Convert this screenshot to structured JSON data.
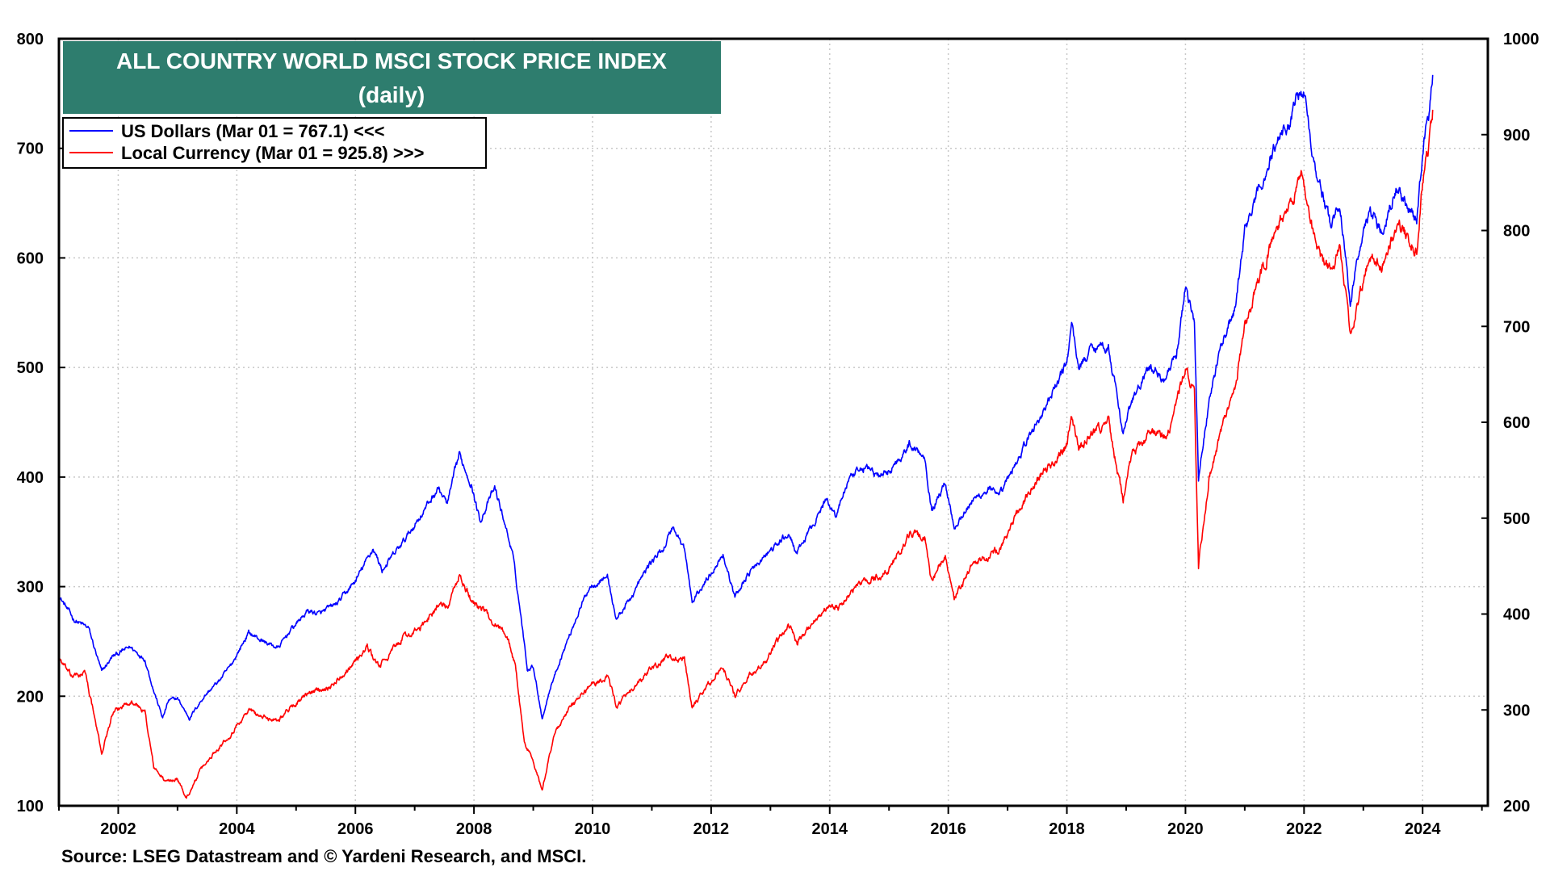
{
  "chart_data": {
    "type": "line",
    "title": "ALL COUNTRY WORLD MSCI STOCK PRICE INDEX",
    "subtitle": "(daily)",
    "source": "Source: LSEG Datastream and © Yardeni Research, and MSCI.",
    "x_ticks": [
      "2002",
      "2004",
      "2006",
      "2008",
      "2010",
      "2012",
      "2014",
      "2016",
      "2018",
      "2020",
      "2022",
      "2024"
    ],
    "x_range": [
      2001.0,
      2025.1
    ],
    "y_left": {
      "range": [
        100,
        800
      ],
      "ticks": [
        "100",
        "200",
        "300",
        "400",
        "500",
        "600",
        "700",
        "800"
      ]
    },
    "y_right": {
      "range": [
        200,
        1000
      ],
      "ticks": [
        "200",
        "300",
        "400",
        "500",
        "600",
        "700",
        "800",
        "900",
        "1000"
      ]
    },
    "grid": true,
    "legend_position": "top-left",
    "series": [
      {
        "name": "US Dollars (Mar 01 = 767.1) <<<",
        "axis": "left",
        "color": "#0000ff",
        "points": [
          [
            2001.0,
            292
          ],
          [
            2001.25,
            270
          ],
          [
            2001.5,
            262
          ],
          [
            2001.72,
            222
          ],
          [
            2001.9,
            236
          ],
          [
            2002.2,
            245
          ],
          [
            2002.45,
            234
          ],
          [
            2002.6,
            205
          ],
          [
            2002.75,
            180
          ],
          [
            2002.85,
            196
          ],
          [
            2003.0,
            198
          ],
          [
            2003.2,
            180
          ],
          [
            2003.45,
            200
          ],
          [
            2003.7,
            214
          ],
          [
            2003.9,
            228
          ],
          [
            2004.2,
            258
          ],
          [
            2004.45,
            250
          ],
          [
            2004.7,
            244
          ],
          [
            2004.9,
            260
          ],
          [
            2005.2,
            278
          ],
          [
            2005.4,
            275
          ],
          [
            2005.7,
            285
          ],
          [
            2006.0,
            305
          ],
          [
            2006.3,
            335
          ],
          [
            2006.45,
            315
          ],
          [
            2006.8,
            340
          ],
          [
            2007.1,
            365
          ],
          [
            2007.4,
            390
          ],
          [
            2007.55,
            375
          ],
          [
            2007.75,
            420
          ],
          [
            2007.95,
            395
          ],
          [
            2008.1,
            360
          ],
          [
            2008.35,
            390
          ],
          [
            2008.5,
            362
          ],
          [
            2008.65,
            330
          ],
          [
            2008.8,
            270
          ],
          [
            2008.9,
            225
          ],
          [
            2009.0,
            228
          ],
          [
            2009.15,
            180
          ],
          [
            2009.3,
            210
          ],
          [
            2009.5,
            240
          ],
          [
            2009.75,
            275
          ],
          [
            2009.95,
            300
          ],
          [
            2010.25,
            310
          ],
          [
            2010.4,
            270
          ],
          [
            2010.65,
            290
          ],
          [
            2010.95,
            320
          ],
          [
            2011.2,
            335
          ],
          [
            2011.35,
            355
          ],
          [
            2011.55,
            335
          ],
          [
            2011.68,
            285
          ],
          [
            2011.85,
            300
          ],
          [
            2012.2,
            330
          ],
          [
            2012.4,
            290
          ],
          [
            2012.6,
            310
          ],
          [
            2012.95,
            330
          ],
          [
            2013.3,
            348
          ],
          [
            2013.45,
            330
          ],
          [
            2013.75,
            360
          ],
          [
            2013.95,
            380
          ],
          [
            2014.1,
            365
          ],
          [
            2014.3,
            395
          ],
          [
            2014.6,
            410
          ],
          [
            2014.85,
            400
          ],
          [
            2015.0,
            405
          ],
          [
            2015.35,
            430
          ],
          [
            2015.6,
            420
          ],
          [
            2015.72,
            370
          ],
          [
            2015.95,
            395
          ],
          [
            2016.1,
            355
          ],
          [
            2016.4,
            378
          ],
          [
            2016.7,
            390
          ],
          [
            2016.85,
            380
          ],
          [
            2017.2,
            420
          ],
          [
            2017.5,
            450
          ],
          [
            2017.75,
            475
          ],
          [
            2018.0,
            505
          ],
          [
            2018.08,
            540
          ],
          [
            2018.2,
            500
          ],
          [
            2018.45,
            520
          ],
          [
            2018.7,
            520
          ],
          [
            2018.95,
            440
          ],
          [
            2019.1,
            470
          ],
          [
            2019.4,
            500
          ],
          [
            2019.65,
            490
          ],
          [
            2019.85,
            510
          ],
          [
            2020.0,
            575
          ],
          [
            2020.15,
            540
          ],
          [
            2020.22,
            400
          ],
          [
            2020.4,
            470
          ],
          [
            2020.6,
            520
          ],
          [
            2020.85,
            555
          ],
          [
            2021.0,
            625
          ],
          [
            2021.3,
            670
          ],
          [
            2021.6,
            715
          ],
          [
            2021.75,
            720
          ],
          [
            2021.88,
            755
          ],
          [
            2022.0,
            750
          ],
          [
            2022.2,
            680
          ],
          [
            2022.45,
            630
          ],
          [
            2022.6,
            650
          ],
          [
            2022.78,
            560
          ],
          [
            2022.9,
            600
          ],
          [
            2023.1,
            645
          ],
          [
            2023.3,
            625
          ],
          [
            2023.55,
            665
          ],
          [
            2023.8,
            640
          ],
          [
            2023.9,
            630
          ],
          [
            2024.0,
            700
          ],
          [
            2024.1,
            730
          ],
          [
            2024.17,
            767
          ]
        ]
      },
      {
        "name": "Local Currency (Mar 01 = 925.8) >>>",
        "axis": "right",
        "color": "#ff0000",
        "points": [
          [
            2001.0,
            355
          ],
          [
            2001.2,
            335
          ],
          [
            2001.45,
            338
          ],
          [
            2001.72,
            255
          ],
          [
            2001.9,
            295
          ],
          [
            2002.2,
            310
          ],
          [
            2002.45,
            298
          ],
          [
            2002.6,
            240
          ],
          [
            2002.8,
            225
          ],
          [
            2003.0,
            228
          ],
          [
            2003.15,
            208
          ],
          [
            2003.4,
            238
          ],
          [
            2003.7,
            262
          ],
          [
            2003.9,
            275
          ],
          [
            2004.2,
            300
          ],
          [
            2004.45,
            292
          ],
          [
            2004.7,
            290
          ],
          [
            2004.95,
            305
          ],
          [
            2005.3,
            320
          ],
          [
            2005.6,
            325
          ],
          [
            2005.9,
            345
          ],
          [
            2006.2,
            365
          ],
          [
            2006.4,
            345
          ],
          [
            2006.8,
            375
          ],
          [
            2007.1,
            385
          ],
          [
            2007.4,
            410
          ],
          [
            2007.55,
            405
          ],
          [
            2007.75,
            440
          ],
          [
            2007.95,
            415
          ],
          [
            2008.15,
            405
          ],
          [
            2008.35,
            390
          ],
          [
            2008.55,
            380
          ],
          [
            2008.7,
            345
          ],
          [
            2008.85,
            265
          ],
          [
            2008.95,
            255
          ],
          [
            2009.15,
            215
          ],
          [
            2009.35,
            275
          ],
          [
            2009.6,
            300
          ],
          [
            2009.95,
            325
          ],
          [
            2010.25,
            335
          ],
          [
            2010.4,
            305
          ],
          [
            2010.65,
            318
          ],
          [
            2010.95,
            340
          ],
          [
            2011.25,
            355
          ],
          [
            2011.55,
            352
          ],
          [
            2011.68,
            300
          ],
          [
            2011.85,
            318
          ],
          [
            2012.2,
            345
          ],
          [
            2012.4,
            315
          ],
          [
            2012.65,
            335
          ],
          [
            2012.95,
            352
          ],
          [
            2013.3,
            390
          ],
          [
            2013.45,
            370
          ],
          [
            2013.75,
            395
          ],
          [
            2014.0,
            410
          ],
          [
            2014.15,
            405
          ],
          [
            2014.45,
            430
          ],
          [
            2014.85,
            440
          ],
          [
            2015.0,
            445
          ],
          [
            2015.35,
            485
          ],
          [
            2015.6,
            480
          ],
          [
            2015.7,
            435
          ],
          [
            2015.95,
            460
          ],
          [
            2016.1,
            415
          ],
          [
            2016.4,
            450
          ],
          [
            2016.7,
            460
          ],
          [
            2016.9,
            470
          ],
          [
            2017.2,
            510
          ],
          [
            2017.5,
            540
          ],
          [
            2017.8,
            560
          ],
          [
            2018.0,
            575
          ],
          [
            2018.08,
            605
          ],
          [
            2018.2,
            570
          ],
          [
            2018.45,
            590
          ],
          [
            2018.7,
            600
          ],
          [
            2018.95,
            520
          ],
          [
            2019.1,
            565
          ],
          [
            2019.4,
            590
          ],
          [
            2019.65,
            585
          ],
          [
            2019.85,
            615
          ],
          [
            2020.0,
            660
          ],
          [
            2020.15,
            630
          ],
          [
            2020.22,
            450
          ],
          [
            2020.4,
            545
          ],
          [
            2020.6,
            590
          ],
          [
            2020.85,
            640
          ],
          [
            2021.0,
            700
          ],
          [
            2021.3,
            760
          ],
          [
            2021.6,
            810
          ],
          [
            2021.8,
            825
          ],
          [
            2021.95,
            865
          ],
          [
            2022.0,
            850
          ],
          [
            2022.2,
            780
          ],
          [
            2022.45,
            755
          ],
          [
            2022.6,
            780
          ],
          [
            2022.78,
            690
          ],
          [
            2022.9,
            720
          ],
          [
            2023.1,
            770
          ],
          [
            2023.3,
            760
          ],
          [
            2023.55,
            805
          ],
          [
            2023.8,
            790
          ],
          [
            2023.9,
            775
          ],
          [
            2024.0,
            850
          ],
          [
            2024.1,
            885
          ],
          [
            2024.17,
            926
          ]
        ]
      }
    ]
  }
}
